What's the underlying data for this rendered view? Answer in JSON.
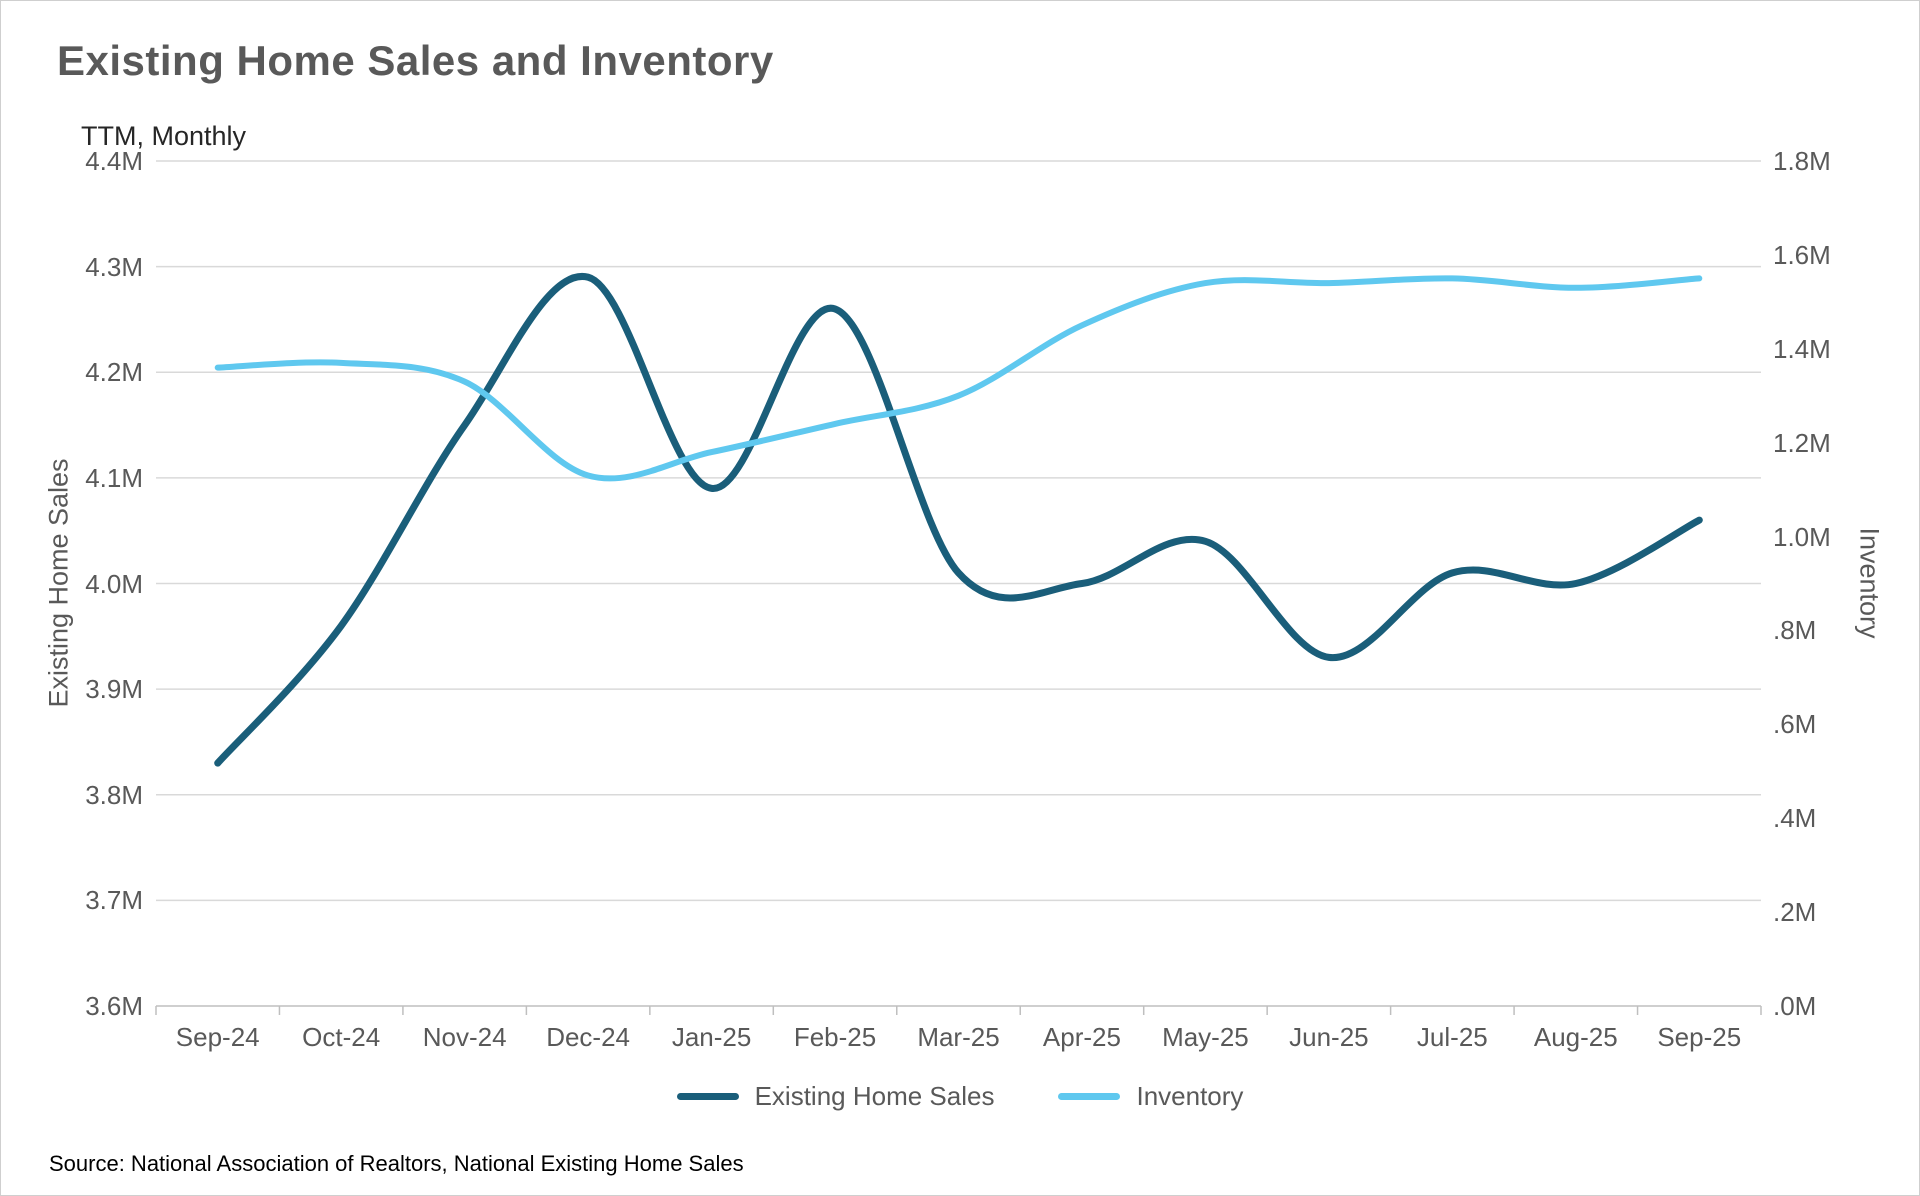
{
  "header": {
    "title": "Existing Home Sales and Inventory",
    "subtitle": "TTM, Monthly"
  },
  "source": "Source: National Association of Realtors, National Existing Home Sales",
  "colors": {
    "title_text": "#595959",
    "axis_text": "#595959",
    "gridline": "#d9d9d9",
    "axis_line": "#bfbfbf",
    "sales_line": "#1A5E7A",
    "inventory_line": "#5FC8EF"
  },
  "chart_data": {
    "type": "line",
    "title": "Existing Home Sales and Inventory",
    "subtitle": "TTM, Monthly",
    "categories": [
      "Sep-24",
      "Oct-24",
      "Nov-24",
      "Dec-24",
      "Jan-25",
      "Feb-25",
      "Mar-25",
      "Apr-25",
      "May-25",
      "Jun-25",
      "Jul-25",
      "Aug-25",
      "Sep-25"
    ],
    "series": [
      {
        "name": "Existing Home Sales",
        "axis": "left",
        "color": "#1A5E7A",
        "stroke_width": 7,
        "values": [
          3.83,
          3.96,
          4.15,
          4.29,
          4.09,
          4.26,
          4.01,
          4.0,
          4.04,
          3.93,
          4.01,
          4.0,
          4.06
        ]
      },
      {
        "name": "Inventory",
        "axis": "right",
        "color": "#5FC8EF",
        "stroke_width": 6,
        "values": [
          1.36,
          1.37,
          1.33,
          1.13,
          1.18,
          1.24,
          1.3,
          1.45,
          1.54,
          1.54,
          1.55,
          1.53,
          1.55
        ]
      }
    ],
    "left_axis": {
      "label": "Existing Home Sales",
      "min": 3.6,
      "max": 4.4,
      "tick_step": 0.1,
      "tick_labels": [
        "3.6M",
        "3.7M",
        "3.8M",
        "3.9M",
        "4.0M",
        "4.1M",
        "4.2M",
        "4.3M",
        "4.4M"
      ]
    },
    "right_axis": {
      "label": "Inventory",
      "min": 0.0,
      "max": 1.8,
      "tick_step": 0.2,
      "tick_labels": [
        ".0M",
        ".2M",
        ".4M",
        ".6M",
        ".8M",
        "1.0M",
        "1.2M",
        "1.4M",
        "1.6M",
        "1.8M"
      ]
    },
    "legend": [
      "Existing Home Sales",
      "Inventory"
    ],
    "grid": "horizontal",
    "legend_position": "bottom",
    "smooth": true
  }
}
